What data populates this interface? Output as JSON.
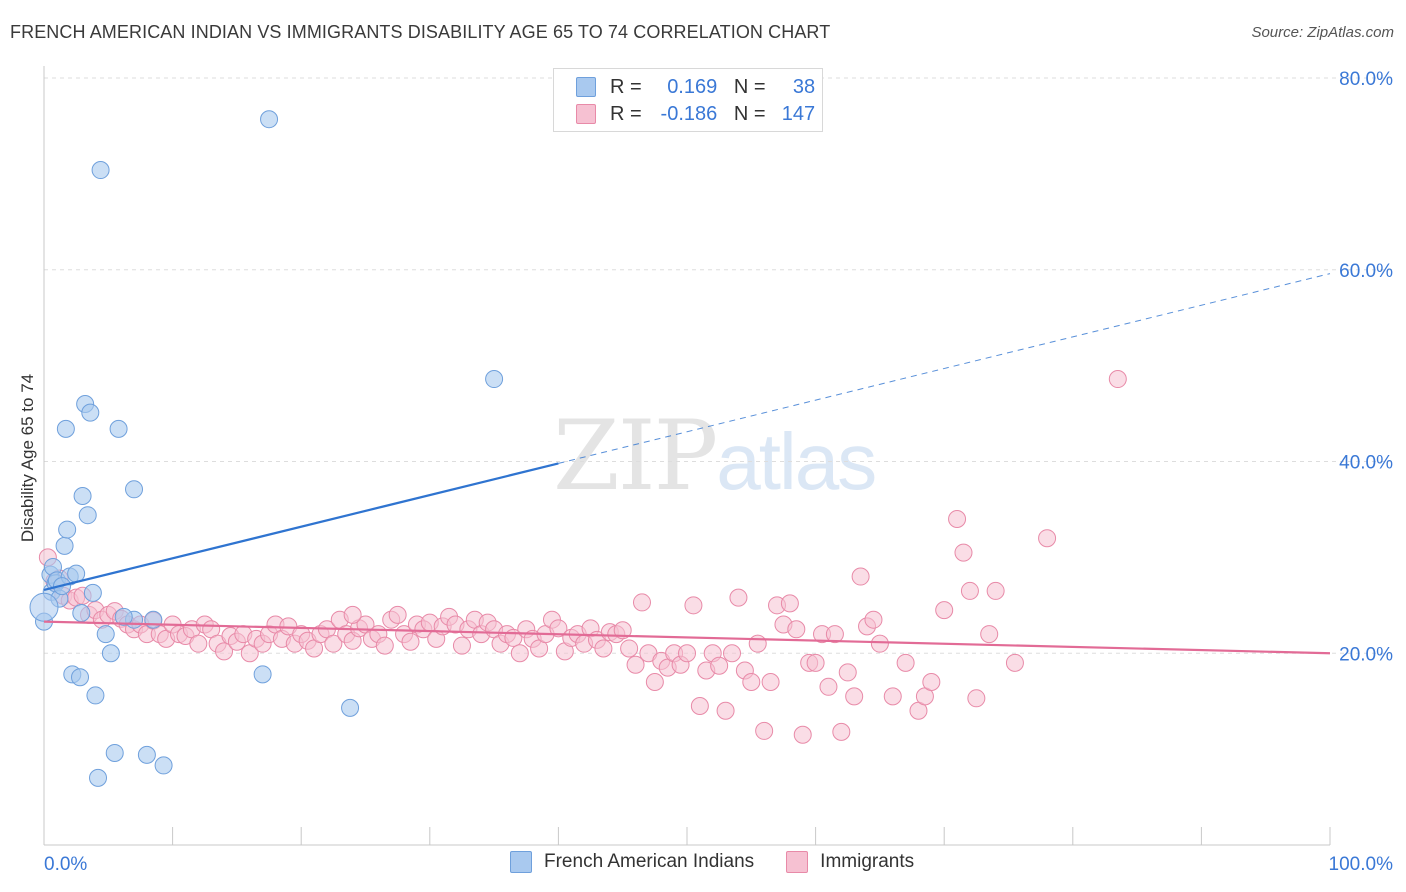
{
  "header": {
    "title": "FRENCH AMERICAN INDIAN VS IMMIGRANTS DISABILITY AGE 65 TO 74 CORRELATION CHART",
    "source": "Source: ZipAtlas.com"
  },
  "legend_top": {
    "rows": [
      {
        "r_label": "R =",
        "r_value": "0.169",
        "n_label": "N =",
        "n_value": "38",
        "color": "#a9c9ef",
        "border": "#6fa0dc"
      },
      {
        "r_label": "R =",
        "r_value": "-0.186",
        "n_label": "N =",
        "n_value": "147",
        "color": "#f6c1d2",
        "border": "#e88aa8"
      }
    ]
  },
  "watermark": {
    "zip": "ZIP",
    "atlas": "atlas"
  },
  "colors": {
    "blue_fill": "#a9c9ef",
    "blue_stroke": "#6fa0dc",
    "blue_line": "#2f74d0",
    "pink_fill": "#f6c1d2",
    "pink_stroke": "#e88aa8",
    "pink_line": "#e26b96",
    "grid": "#dddddd",
    "tick_text": "#3a78d6"
  },
  "chart_data": {
    "type": "scatter",
    "title": "FRENCH AMERICAN INDIAN VS IMMIGRANTS DISABILITY AGE 65 TO 74 CORRELATION CHART",
    "xlabel": "",
    "ylabel": "Disability Age 65 to 74",
    "xlim": [
      0,
      100
    ],
    "ylim": [
      0,
      80
    ],
    "x_tick_labels": [
      "0.0%",
      "100.0%"
    ],
    "y_tick_labels": [
      "20.0%",
      "40.0%",
      "60.0%",
      "80.0%"
    ],
    "y_ticks": [
      20,
      40,
      60,
      80
    ],
    "grid": true,
    "legend_position": "bottom-center",
    "series": [
      {
        "name": "French American Indians",
        "r": 0.169,
        "n": 38,
        "trend": {
          "x0": 0,
          "y0": 26.6,
          "x1": 40.0,
          "y1": 39.8,
          "dash_to_x": 100,
          "dash_to_y": 59.6
        },
        "points": [
          [
            0.0,
            23.3
          ],
          [
            0.5,
            28.2
          ],
          [
            0.6,
            26.4
          ],
          [
            0.7,
            29.0
          ],
          [
            0.9,
            27.3
          ],
          [
            1.0,
            27.6
          ],
          [
            1.2,
            25.7
          ],
          [
            1.6,
            31.2
          ],
          [
            1.7,
            43.4
          ],
          [
            1.8,
            32.9
          ],
          [
            2.0,
            28.0
          ],
          [
            2.2,
            17.8
          ],
          [
            2.8,
            17.5
          ],
          [
            3.0,
            36.4
          ],
          [
            3.2,
            46.0
          ],
          [
            3.4,
            34.4
          ],
          [
            3.6,
            45.1
          ],
          [
            4.0,
            15.6
          ],
          [
            4.2,
            7.0
          ],
          [
            4.4,
            70.4
          ],
          [
            4.8,
            22.0
          ],
          [
            5.2,
            20.0
          ],
          [
            5.5,
            9.6
          ],
          [
            5.8,
            43.4
          ],
          [
            7.0,
            23.5
          ],
          [
            7.0,
            37.1
          ],
          [
            8.0,
            9.4
          ],
          [
            8.5,
            23.5
          ],
          [
            9.3,
            8.3
          ],
          [
            17.0,
            17.8
          ],
          [
            17.5,
            75.7
          ],
          [
            23.8,
            14.3
          ],
          [
            35.0,
            48.6
          ],
          [
            2.5,
            28.3
          ],
          [
            3.8,
            26.3
          ],
          [
            1.4,
            27.0
          ],
          [
            6.2,
            23.8
          ],
          [
            2.9,
            24.2
          ]
        ]
      },
      {
        "name": "Immigrants",
        "r": -0.186,
        "n": 147,
        "trend": {
          "x0": 0,
          "y0": 23.3,
          "x1": 100,
          "y1": 20.0
        },
        "points": [
          [
            0.3,
            30.0
          ],
          [
            0.8,
            27.5
          ],
          [
            1.2,
            27.8
          ],
          [
            1.5,
            26.0
          ],
          [
            2.0,
            25.5
          ],
          [
            2.5,
            25.8
          ],
          [
            3.0,
            26.0
          ],
          [
            3.5,
            24.0
          ],
          [
            4.0,
            24.5
          ],
          [
            4.5,
            23.5
          ],
          [
            5.0,
            24.0
          ],
          [
            5.5,
            24.4
          ],
          [
            6.0,
            23.6
          ],
          [
            6.5,
            23.0
          ],
          [
            7.0,
            22.5
          ],
          [
            7.5,
            23.0
          ],
          [
            8.0,
            22.0
          ],
          [
            8.5,
            23.4
          ],
          [
            9.0,
            22.0
          ],
          [
            9.5,
            21.5
          ],
          [
            10.0,
            23.0
          ],
          [
            10.5,
            22.0
          ],
          [
            11.0,
            21.8
          ],
          [
            11.5,
            22.5
          ],
          [
            12.0,
            21.0
          ],
          [
            12.5,
            23.0
          ],
          [
            13.0,
            22.5
          ],
          [
            13.5,
            21.0
          ],
          [
            14.0,
            20.2
          ],
          [
            14.5,
            21.8
          ],
          [
            15.0,
            21.2
          ],
          [
            15.5,
            22.0
          ],
          [
            16.0,
            20.0
          ],
          [
            16.5,
            21.5
          ],
          [
            17.0,
            21.0
          ],
          [
            17.5,
            22.0
          ],
          [
            18.0,
            23.0
          ],
          [
            18.5,
            21.5
          ],
          [
            19.0,
            22.8
          ],
          [
            19.5,
            21.0
          ],
          [
            20.0,
            22.0
          ],
          [
            20.5,
            21.3
          ],
          [
            21.0,
            20.5
          ],
          [
            21.5,
            22.0
          ],
          [
            22.0,
            22.5
          ],
          [
            22.5,
            21.0
          ],
          [
            23.0,
            23.5
          ],
          [
            23.5,
            22.0
          ],
          [
            24.0,
            21.3
          ],
          [
            24.5,
            22.6
          ],
          [
            25.0,
            23.0
          ],
          [
            25.5,
            21.5
          ],
          [
            26.0,
            22.0
          ],
          [
            26.5,
            20.8
          ],
          [
            27.0,
            23.5
          ],
          [
            27.5,
            24.0
          ],
          [
            28.0,
            22.0
          ],
          [
            28.5,
            21.2
          ],
          [
            29.0,
            23.0
          ],
          [
            29.5,
            22.5
          ],
          [
            30.0,
            23.2
          ],
          [
            30.5,
            21.5
          ],
          [
            31.0,
            22.8
          ],
          [
            31.5,
            23.8
          ],
          [
            32.0,
            23.0
          ],
          [
            32.5,
            20.8
          ],
          [
            33.0,
            22.5
          ],
          [
            33.5,
            23.5
          ],
          [
            34.0,
            22.0
          ],
          [
            34.5,
            23.2
          ],
          [
            35.0,
            22.5
          ],
          [
            35.5,
            21.0
          ],
          [
            36.0,
            22.0
          ],
          [
            36.5,
            21.6
          ],
          [
            37.0,
            20.0
          ],
          [
            37.5,
            22.5
          ],
          [
            38.0,
            21.5
          ],
          [
            38.5,
            20.5
          ],
          [
            39.0,
            22.0
          ],
          [
            39.5,
            23.5
          ],
          [
            40.0,
            22.6
          ],
          [
            40.5,
            20.2
          ],
          [
            41.0,
            21.6
          ],
          [
            41.5,
            22.0
          ],
          [
            42.0,
            21.0
          ],
          [
            42.5,
            22.6
          ],
          [
            43.0,
            21.4
          ],
          [
            43.5,
            20.5
          ],
          [
            44.0,
            22.2
          ],
          [
            44.5,
            22.0
          ],
          [
            45.0,
            22.4
          ],
          [
            45.5,
            20.5
          ],
          [
            46.0,
            18.8
          ],
          [
            46.5,
            25.3
          ],
          [
            47.0,
            20.0
          ],
          [
            47.5,
            17.0
          ],
          [
            48.0,
            19.2
          ],
          [
            48.5,
            18.5
          ],
          [
            49.0,
            20.0
          ],
          [
            49.5,
            18.8
          ],
          [
            50.0,
            20.0
          ],
          [
            50.5,
            25.0
          ],
          [
            51.0,
            14.5
          ],
          [
            51.5,
            18.2
          ],
          [
            52.0,
            20.0
          ],
          [
            52.5,
            18.7
          ],
          [
            53.0,
            14.0
          ],
          [
            53.5,
            20.0
          ],
          [
            54.0,
            25.8
          ],
          [
            54.5,
            18.2
          ],
          [
            55.0,
            17.0
          ],
          [
            55.5,
            21.0
          ],
          [
            56.0,
            11.9
          ],
          [
            56.5,
            17.0
          ],
          [
            57.0,
            25.0
          ],
          [
            57.5,
            23.0
          ],
          [
            58.0,
            25.2
          ],
          [
            58.5,
            22.5
          ],
          [
            59.0,
            11.5
          ],
          [
            59.5,
            19.0
          ],
          [
            60.0,
            19.0
          ],
          [
            60.5,
            22.0
          ],
          [
            61.0,
            16.5
          ],
          [
            61.5,
            22.0
          ],
          [
            62.0,
            11.8
          ],
          [
            62.5,
            18.0
          ],
          [
            63.0,
            15.5
          ],
          [
            63.5,
            28.0
          ],
          [
            64.0,
            22.8
          ],
          [
            64.5,
            23.5
          ],
          [
            65.0,
            21.0
          ],
          [
            66.0,
            15.5
          ],
          [
            67.0,
            19.0
          ],
          [
            68.0,
            14.0
          ],
          [
            68.5,
            15.5
          ],
          [
            69.0,
            17.0
          ],
          [
            70.0,
            24.5
          ],
          [
            71.0,
            34.0
          ],
          [
            71.5,
            30.5
          ],
          [
            72.0,
            26.5
          ],
          [
            72.5,
            15.3
          ],
          [
            73.5,
            22.0
          ],
          [
            74.0,
            26.5
          ],
          [
            75.5,
            19.0
          ],
          [
            78.0,
            32.0
          ],
          [
            83.5,
            48.6
          ],
          [
            24.0,
            24.0
          ]
        ]
      }
    ]
  }
}
